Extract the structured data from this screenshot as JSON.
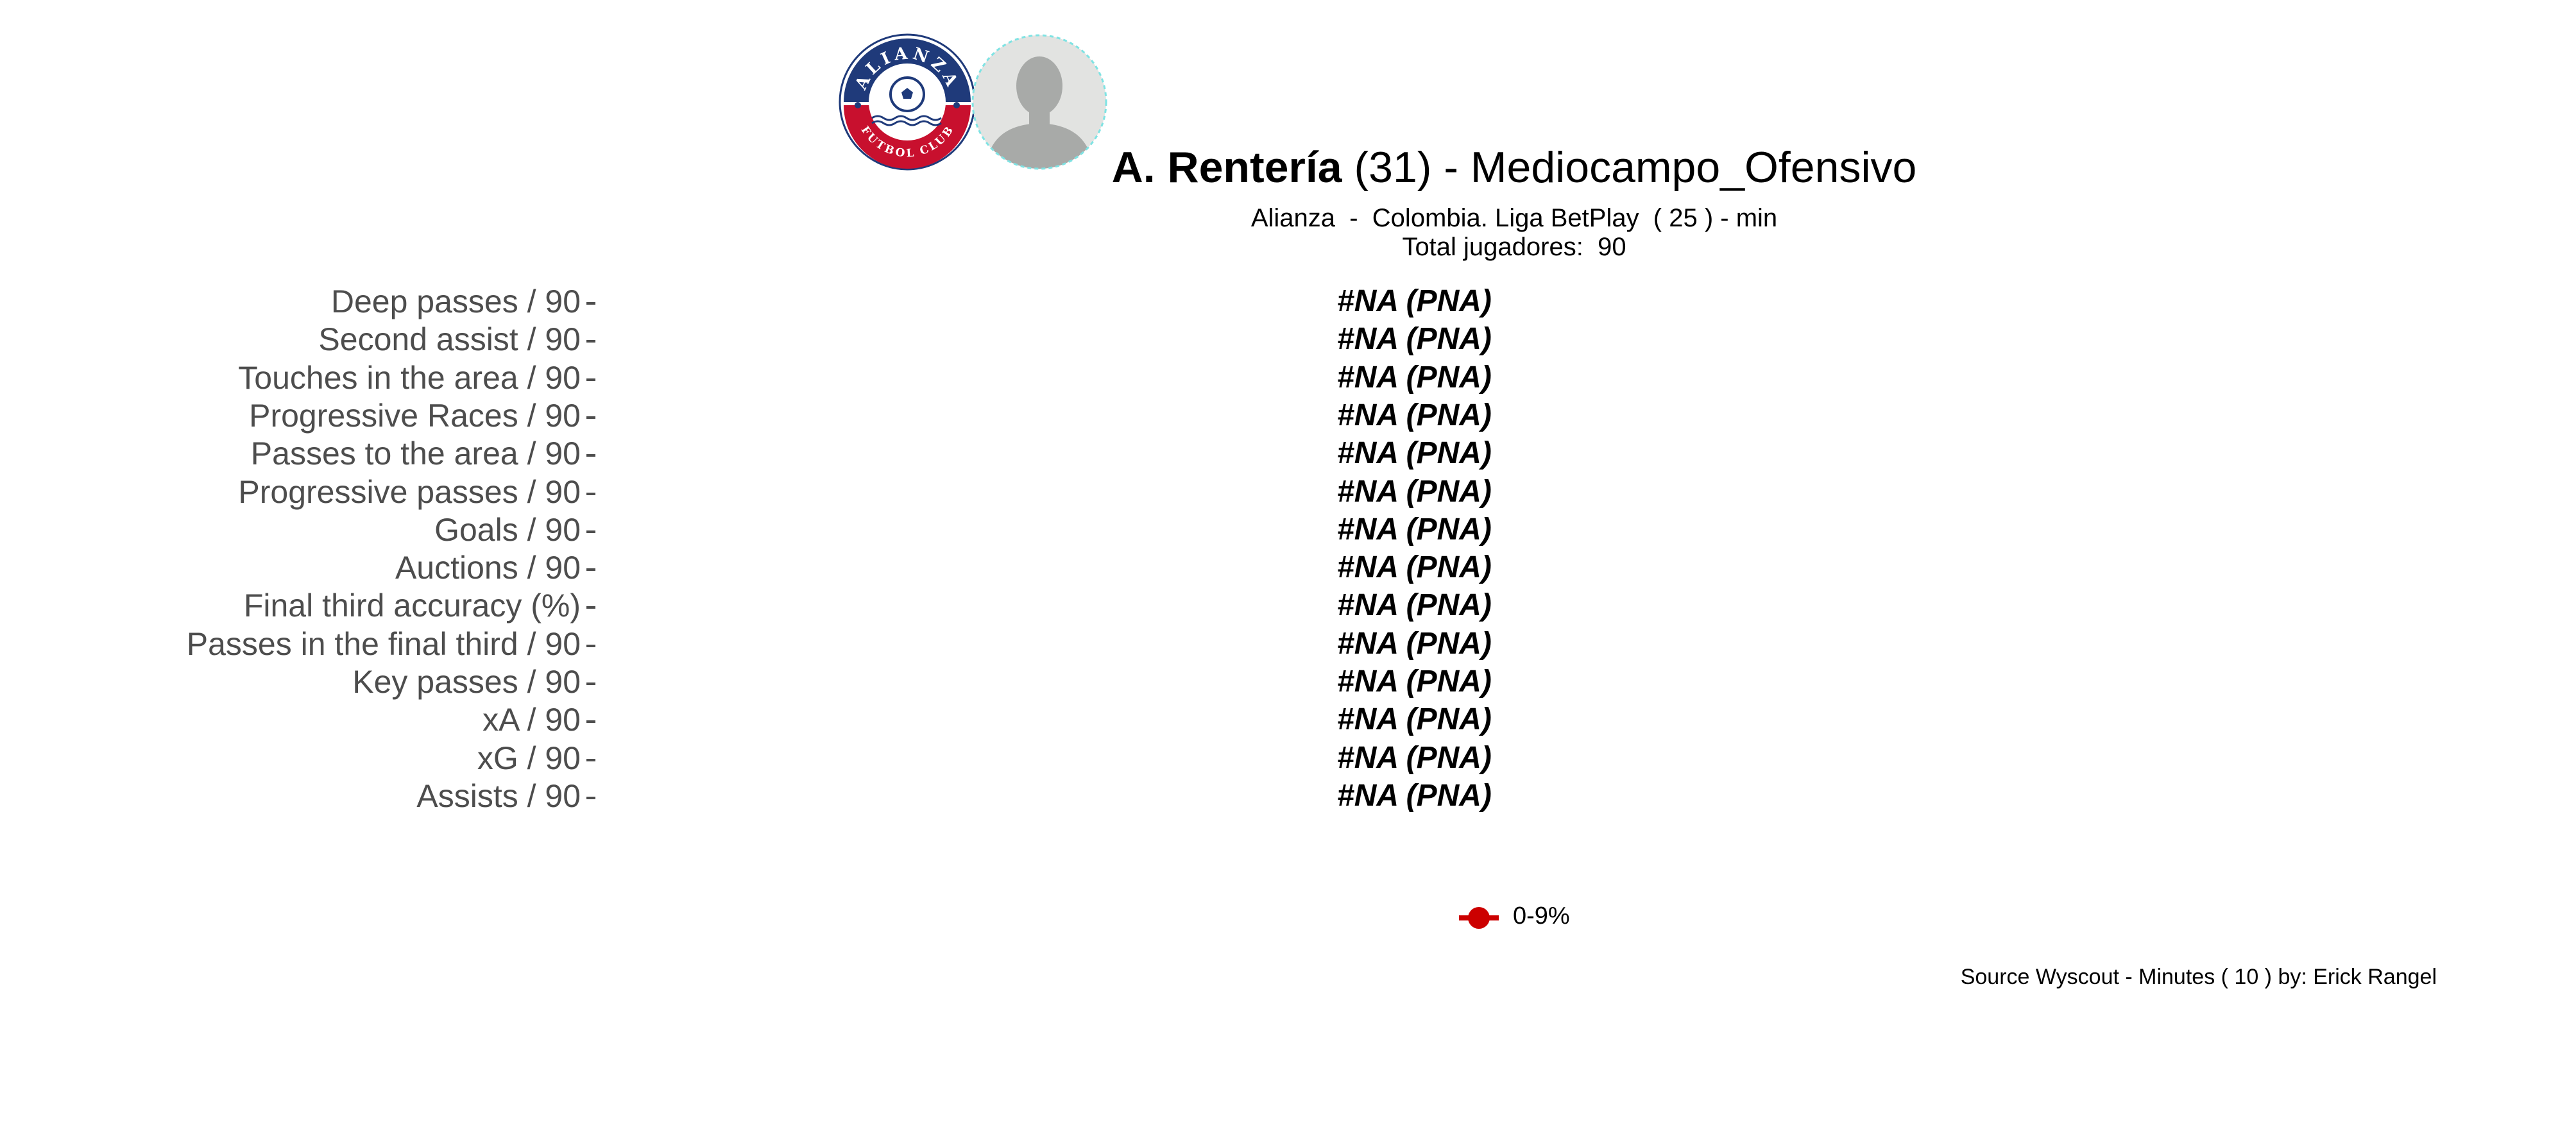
{
  "header": {
    "player_name": "A. Rentería",
    "player_age": "(31) -",
    "position": "Mediocampo_Ofensivo",
    "subtitle": "Alianza  -  Colombia. Liga BetPlay  ( 25 ) - min",
    "total_players": "Total jugadores:  90",
    "club_logo": {
      "icon": "club-crest-icon",
      "text_top": "ALIANZA",
      "text_bottom": "FUTBOL CLUB",
      "colors": {
        "navy": "#1f3a7a",
        "red": "#c8102e",
        "white": "#ffffff"
      }
    },
    "player_photo": {
      "icon": "player-silhouette-icon"
    }
  },
  "chart_data": {
    "type": "table",
    "metrics": [
      {
        "label": "Deep passes / 90",
        "value": "#NA (PNA)"
      },
      {
        "label": "Second assist / 90",
        "value": "#NA (PNA)"
      },
      {
        "label": "Touches in the area / 90",
        "value": "#NA (PNA)"
      },
      {
        "label": "Progressive Races / 90",
        "value": "#NA (PNA)"
      },
      {
        "label": "Passes to the area / 90",
        "value": "#NA (PNA)"
      },
      {
        "label": "Progressive passes / 90",
        "value": "#NA (PNA)"
      },
      {
        "label": "Goals / 90",
        "value": "#NA (PNA)"
      },
      {
        "label": "Auctions / 90",
        "value": "#NA (PNA)"
      },
      {
        "label": "Final third accuracy (%)",
        "value": "#NA (PNA)"
      },
      {
        "label": "Passes in the final third / 90",
        "value": "#NA (PNA)"
      },
      {
        "label": "Key passes / 90",
        "value": "#NA (PNA)"
      },
      {
        "label": "xA / 90",
        "value": "#NA (PNA)"
      },
      {
        "label": "xG / 90",
        "value": "#NA (PNA)"
      },
      {
        "label": "Assists / 90",
        "value": "#NA (PNA)"
      }
    ],
    "legend": [
      {
        "label": "0-9%",
        "color": "#cc0000"
      }
    ]
  },
  "footer": {
    "source": "Source Wyscout - Minutes ( 10 ) by: Erick Rangel"
  }
}
